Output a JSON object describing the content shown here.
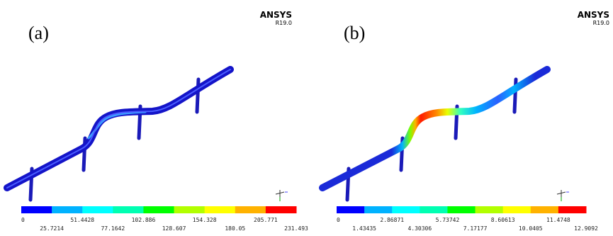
{
  "panels": [
    {
      "label": "(a)",
      "brand": "ANSYS",
      "version": "R19.0",
      "colorbar_top": [
        "0",
        "51.4428",
        "102.886",
        "154.328",
        "205.771"
      ],
      "colorbar_bottom": [
        "25.7214",
        "77.1642",
        "128.607",
        "180.05",
        "231.493"
      ]
    },
    {
      "label": "(b)",
      "brand": "ANSYS",
      "version": "R19.0",
      "colorbar_top": [
        "0",
        "2.86871",
        "5.73742",
        "8.60613",
        "11.4748"
      ],
      "colorbar_bottom": [
        "1.43435",
        "4.30306",
        "7.17177",
        "10.0405",
        "12.9092"
      ]
    }
  ]
}
